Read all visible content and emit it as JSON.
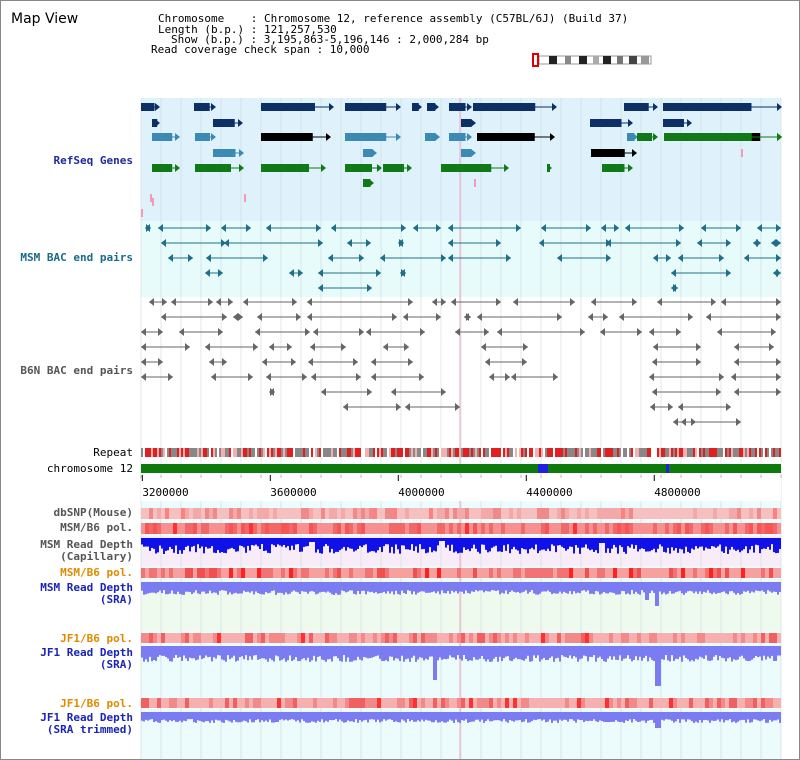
{
  "page_title": "Map View",
  "header": {
    "chromosome_line": "Chromosome    : Chromosome 12, reference assembly (C57BL/6J) (Build 37)",
    "length_line": "Length (b.p.) : 121,257,530",
    "show_line": "Show (b.p.) : 3,195,863-5,196,146 : 2,000,284 bp",
    "coverage_line": "Read coverage check span : 10,000"
  },
  "view": {
    "start": 3195863,
    "end": 5196146
  },
  "axis": {
    "ticks": [
      {
        "value": 3200000,
        "label": "3200000"
      },
      {
        "value": 3600000,
        "label": "3600000"
      },
      {
        "value": 4000000,
        "label": "4000000"
      },
      {
        "value": 4400000,
        "label": "4400000"
      },
      {
        "value": 4800000,
        "label": "4800000"
      }
    ]
  },
  "tracks": {
    "refseq_genes": {
      "label": "RefSeq Genes"
    },
    "msm_bac": {
      "label": "MSM BAC end pairs"
    },
    "b6n_bac": {
      "label": "B6N BAC end pairs"
    },
    "repeat": {
      "label": "Repeat"
    },
    "chromosome": {
      "label": "chromosome 12"
    },
    "dbsnp": {
      "label": "dbSNP(Mouse)"
    },
    "msm_b6_pol": {
      "label": "MSM/B6 pol."
    },
    "msm_depth_cap": {
      "label": "MSM Read Depth\n(Capillary)"
    },
    "msm_b6_pol_2": {
      "label": "MSM/B6 pol."
    },
    "msm_depth_sra": {
      "label": "MSM Read Depth\n(SRA)"
    },
    "jf1_b6_pol": {
      "label": "JF1/B6 pol."
    },
    "jf1_depth_sra": {
      "label": "JF1 Read Depth\n(SRA)"
    },
    "jf1_b6_pol_2": {
      "label": "JF1/B6 pol."
    },
    "jf1_depth_trim": {
      "label": "JF1 Read Depth\n(SRA trimmed)"
    }
  },
  "colors": {
    "gene_navy": "#0c2f66",
    "gene_blue": "#3b8ab3",
    "gene_green": "#0f7a17",
    "gene_black": "#000000",
    "marker_pink": "#f29ab8",
    "msm_bac": "#1f6f8a",
    "b6n_bac": "#666666",
    "chromosome": "#0e7a0e",
    "chromosome_band": "#2020e0",
    "depth_strong": "#1010e8",
    "depth_soft": "#7b7bf2",
    "pol_red": "#ff0000",
    "pol_orange": "#e08a00"
  }
}
